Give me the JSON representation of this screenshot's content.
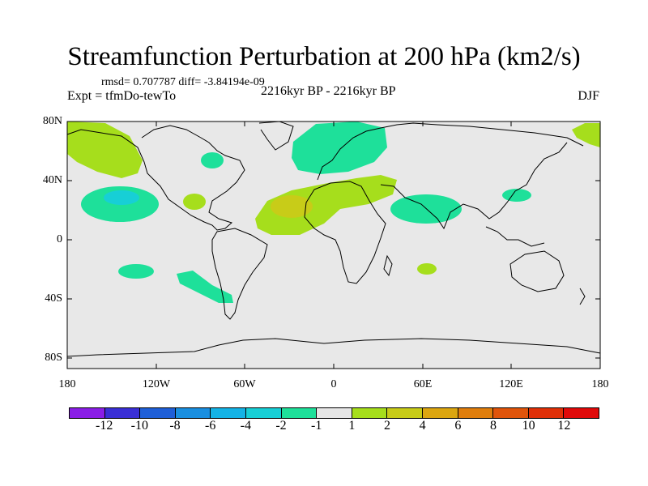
{
  "title": "Streamfunction Perturbation at 200 hPa (km2/s)",
  "stats": "rmsd= 0.707787 diff= -3.84194e-09",
  "experiment": "Expt = tfmDo-tewTo",
  "period": "2216kyr BP - 2216kyr BP",
  "season": "DJF",
  "lat_labels": [
    "80N",
    "40N",
    "0",
    "40S",
    "80S"
  ],
  "lon_labels": [
    "180",
    "120W",
    "60W",
    "0",
    "60E",
    "120E",
    "180"
  ],
  "colorbar": {
    "labels": [
      "-12",
      "-10",
      "-8",
      "-6",
      "-4",
      "-2",
      "-1",
      "1",
      "2",
      "4",
      "6",
      "8",
      "10",
      "12"
    ],
    "colors": [
      "#8a1ee6",
      "#3a2fd6",
      "#1f5fd8",
      "#1a8fe0",
      "#14b3e6",
      "#17cfd6",
      "#1ee09a",
      "#e6e6e6",
      "#a6de1c",
      "#c8cc18",
      "#dca610",
      "#e07e0c",
      "#e0540a",
      "#e03008",
      "#e00a0a"
    ]
  }
}
